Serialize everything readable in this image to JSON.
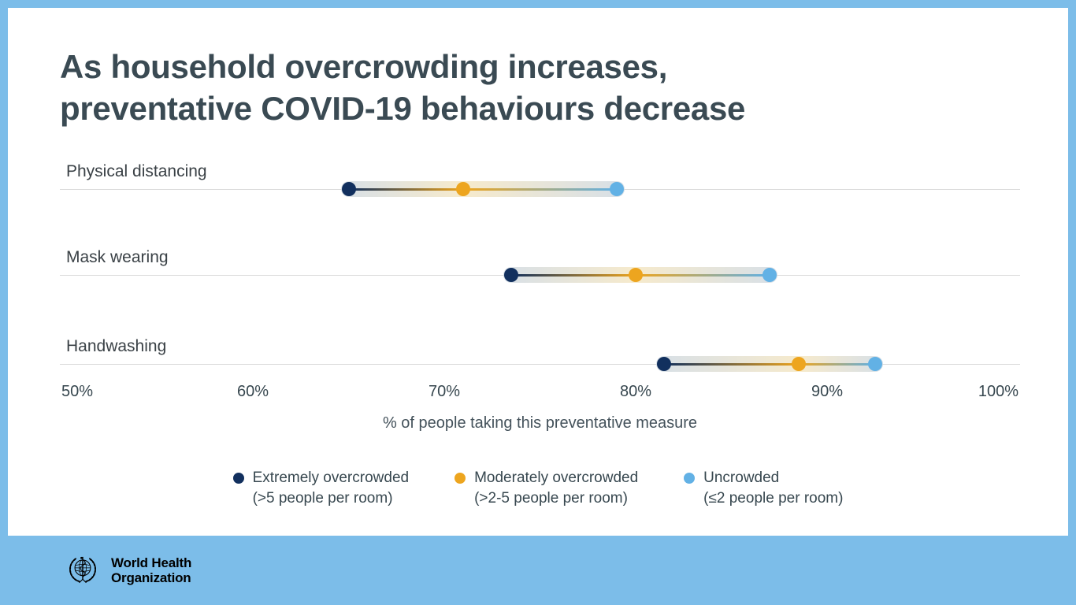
{
  "frame": {
    "border_color": "#7CBDE9",
    "card_background": "#FFFFFF"
  },
  "title": {
    "line1": "As household overcrowding increases,",
    "line2": "preventative COVID-19 behaviours decrease",
    "color": "#3A4A53"
  },
  "chart_data": {
    "type": "scatter",
    "subtype": "dumbbell-dot-plot",
    "categories": [
      "Physical distancing",
      "Mask wearing",
      "Handwashing"
    ],
    "series": [
      {
        "name": "Extremely overcrowded (>5 people per room)",
        "color": "#12305E",
        "values": [
          65,
          73.5,
          81.5
        ]
      },
      {
        "name": "Moderately overcrowded (>2-5 people per room)",
        "color": "#EDA51F",
        "values": [
          71,
          80,
          88.5
        ]
      },
      {
        "name": "Uncrowded (≤2 people per room)",
        "color": "#62B1E5",
        "values": [
          79,
          87,
          92.5
        ]
      }
    ],
    "xlabel": "% of people taking this preventative measure",
    "ylabel": "",
    "xlim": [
      50,
      100
    ],
    "xticks": [
      "50%",
      "60%",
      "70%",
      "80%",
      "90%",
      "100%"
    ],
    "grid": "one horizontal gridline per category row",
    "legend_position": "bottom",
    "gridline_color": "#DBDBDB",
    "band_steel_color": "#CAD5DF",
    "band_cream_color": "#F3E3BB"
  },
  "legend": {
    "items": [
      {
        "label": "Extremely overcrowded",
        "sublabel": "(>5 people per room)",
        "color": "#12305E"
      },
      {
        "label": "Moderately overcrowded",
        "sublabel": "(>2-5 people per room)",
        "color": "#EDA51F"
      },
      {
        "label": "Uncrowded",
        "sublabel": "(≤2 people per room)",
        "color": "#62B1E5"
      }
    ]
  },
  "footer": {
    "org_line1": "World Health",
    "org_line2": "Organization",
    "band_color": "#7CBDE9"
  }
}
